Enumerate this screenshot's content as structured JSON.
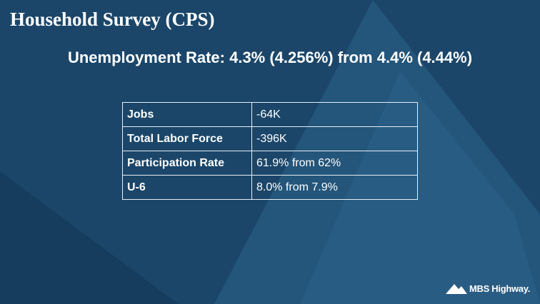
{
  "header": {
    "title": "Household Survey (CPS)",
    "subtitle": "Unemployment Rate: 4.3% (4.256%) from 4.4% (4.44%)"
  },
  "table": {
    "rows": [
      [
        "Jobs",
        "-64K"
      ],
      [
        "Total Labor Force",
        "-396K"
      ],
      [
        "Participation Rate",
        "61.9% from 62%"
      ],
      [
        "U-6",
        "8.0% from 7.9%"
      ]
    ]
  },
  "footer": {
    "logo": "MBS Highway."
  }
}
